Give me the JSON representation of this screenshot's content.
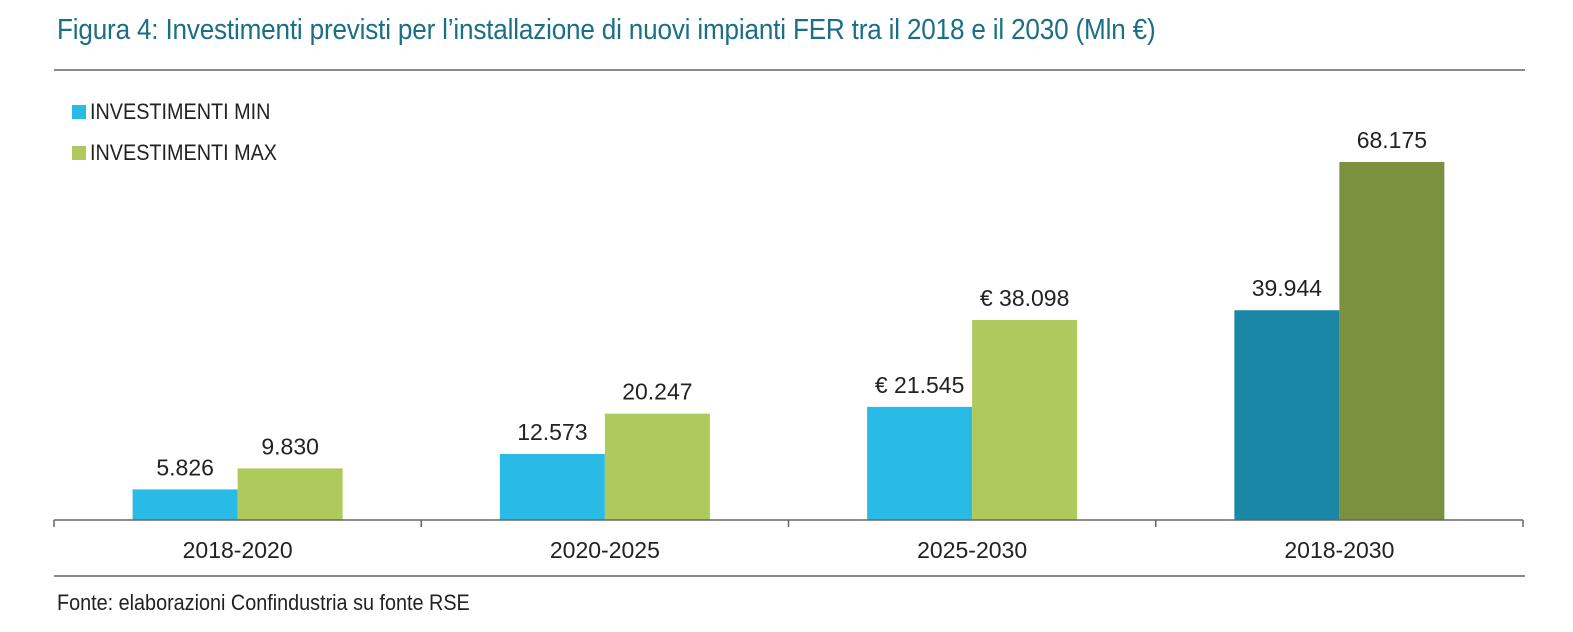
{
  "title": "Figura 4: Investimenti previsti per l’installazione di nuovi impianti FER tra il 2018 e il 2030 (Mln €)",
  "source": "Fonte: elaborazioni Confindustria su fonte RSE",
  "colors": {
    "title": "#1a6f87",
    "min": "#29bae6",
    "max": "#aec95c",
    "min_total": "#1a87a6",
    "max_total": "#7b9140",
    "rule": "#8a8a8a"
  },
  "chart_data": {
    "type": "bar",
    "title": "Figura 4: Investimenti previsti per l’installazione di nuovi impianti FER tra il 2018 e il 2030 (Mln €)",
    "categories": [
      "2018-2020",
      "2020-2025",
      "2025-2030",
      "2018-2030"
    ],
    "series": [
      {
        "name": "INVESTIMENTI MIN",
        "values": [
          5826,
          12573,
          21545,
          39944
        ],
        "labels": [
          "5.826",
          "12.573",
          "€ 21.545",
          "39.944"
        ]
      },
      {
        "name": "INVESTIMENTI MAX",
        "values": [
          9830,
          20247,
          38098,
          68175
        ],
        "labels": [
          "9.830",
          "20.247",
          "€ 38.098",
          "68.175"
        ]
      }
    ],
    "xlabel": "",
    "ylabel": "",
    "ylim": [
      0,
      68175
    ],
    "grid": false,
    "legend": "top-left"
  }
}
